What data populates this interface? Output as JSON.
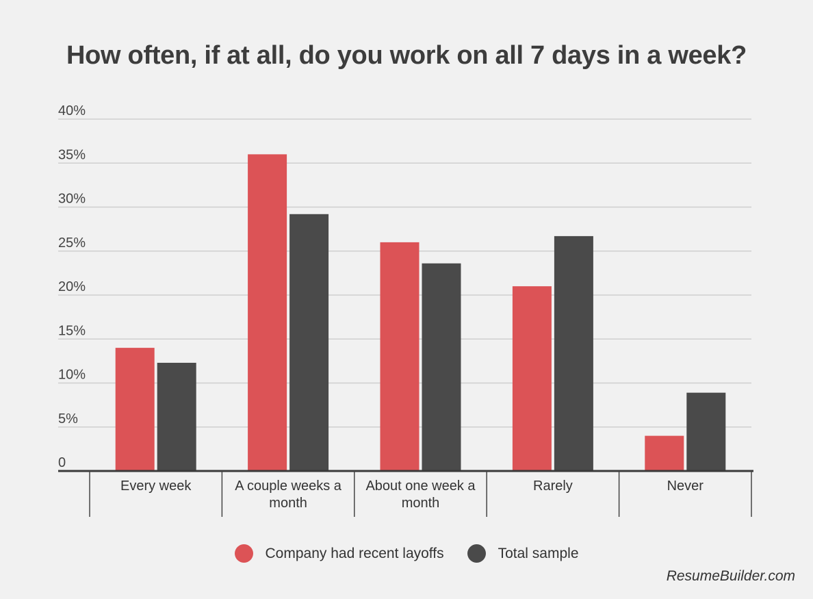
{
  "chart_data": {
    "type": "bar",
    "title": "How often, if at all, do you work on all 7 days in a week?",
    "xlabel": "",
    "ylabel": "",
    "ylim": [
      0,
      40
    ],
    "yticks": [
      "0",
      "5%",
      "10%",
      "15%",
      "20%",
      "25%",
      "30%",
      "35%",
      "40%"
    ],
    "ytick_values": [
      0,
      5,
      10,
      15,
      20,
      25,
      30,
      35,
      40
    ],
    "categories": [
      "Every week",
      "A couple weeks a month",
      "About one week a month",
      "Rarely",
      "Never"
    ],
    "category_lines": [
      [
        "Every week"
      ],
      [
        "A couple weeks a",
        "month"
      ],
      [
        "About one week a",
        "month"
      ],
      [
        "Rarely"
      ],
      [
        "Never"
      ]
    ],
    "series": [
      {
        "name": "Company had recent layoffs",
        "color": "#dc5356",
        "values": [
          14,
          36,
          26,
          21,
          4
        ]
      },
      {
        "name": "Total sample",
        "color": "#4a4a4a",
        "values": [
          12.3,
          29.2,
          23.6,
          26.7,
          8.9
        ]
      }
    ],
    "grid": true,
    "legend_position": "bottom-center"
  },
  "source": "ResumeBuilder.com"
}
